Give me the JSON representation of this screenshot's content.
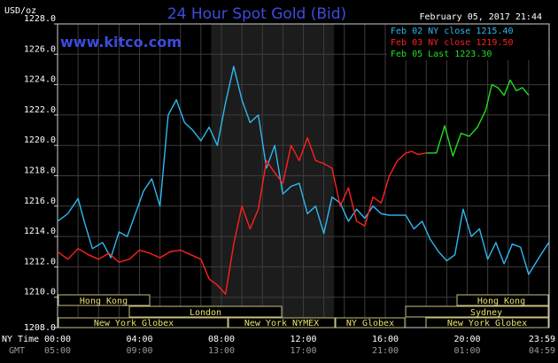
{
  "header": {
    "title": "24 Hour Spot Gold (Bid)",
    "units": "USD/oz",
    "site": "www.kitco.com",
    "timestamp": "February 05, 2017 21:44"
  },
  "legend": [
    {
      "label": "Feb 02 NY close 1215.40",
      "color": "#2fb8f0"
    },
    {
      "label": "Feb 03 NY close 1219.50",
      "color": "#ff2020"
    },
    {
      "label": "Feb 05 Last 1223.30",
      "color": "#20e020"
    }
  ],
  "axis": {
    "row1_label": "NY Time",
    "row2_label": "GMT",
    "ny_ticks": [
      "00:00",
      "04:00",
      "08:00",
      "12:00",
      "16:00",
      "20:00",
      "23:59"
    ],
    "gmt_ticks": [
      "05:00",
      "09:00",
      "13:00",
      "17:00",
      "21:00",
      "01:00",
      "04:59"
    ]
  },
  "markets": {
    "hong_kong_1": "Hong Kong",
    "london": "London",
    "ny_globex_1": "New York Globex",
    "ny_nymex": "New York NYMEX",
    "ny_globex_2": "NY Globex",
    "hong_kong_2": "Hong Kong",
    "sydney": "Sydney",
    "ny_globex_3": "New York Globex"
  },
  "chart_data": {
    "type": "line",
    "title": "24 Hour Spot Gold (Bid)",
    "ylabel": "USD/oz",
    "xlabel": "",
    "xlim": [
      0,
      24
    ],
    "ylim": [
      1208,
      1228
    ],
    "yticks": [
      1208,
      1210,
      1212,
      1214,
      1216,
      1218,
      1220,
      1222,
      1224,
      1226,
      1228
    ],
    "highlight_band_hours": [
      7.5,
      13.5
    ],
    "grid": true,
    "series": [
      {
        "name": "Feb 02 NY close 1215.40",
        "color": "#2fb8f0",
        "x": [
          0,
          0.5,
          1,
          1.3,
          1.7,
          2.2,
          2.6,
          3,
          3.4,
          3.8,
          4.2,
          4.6,
          5,
          5.4,
          5.8,
          6.2,
          6.6,
          7,
          7.4,
          7.8,
          8.2,
          8.6,
          9,
          9.4,
          9.8,
          10.2,
          10.6,
          11,
          11.4,
          11.8,
          12.2,
          12.6,
          13,
          13.4,
          13.8,
          14.2,
          14.6,
          15,
          15.4,
          15.8,
          16.2,
          16.6,
          17,
          17.4,
          17.8,
          18.2,
          18.6,
          19,
          19.4,
          19.8,
          20.2,
          20.6,
          21,
          21.4,
          21.8,
          22.2,
          22.6,
          23,
          23.5,
          23.98
        ],
        "y": [
          1215.0,
          1215.5,
          1216.5,
          1215.0,
          1213.2,
          1213.6,
          1212.6,
          1214.3,
          1214.0,
          1215.5,
          1217.0,
          1217.8,
          1216.0,
          1222.0,
          1223.0,
          1221.5,
          1221.0,
          1220.3,
          1221.2,
          1220.0,
          1222.8,
          1225.2,
          1223.0,
          1221.5,
          1222.0,
          1218.5,
          1220.0,
          1216.8,
          1217.3,
          1217.5,
          1215.5,
          1216.0,
          1214.2,
          1216.6,
          1216.2,
          1215.0,
          1215.8,
          1215.2,
          1216.0,
          1215.5,
          1215.4,
          1215.4,
          1215.4,
          1214.5,
          1215.0,
          1213.8,
          1213.0,
          1212.4,
          1212.8,
          1215.8,
          1214.0,
          1214.5,
          1212.5,
          1213.6,
          1212.2,
          1213.5,
          1213.3,
          1211.5,
          1212.6,
          1213.6
        ]
      },
      {
        "name": "Feb 03 NY close 1219.50",
        "color": "#ff2020",
        "x": [
          0,
          0.5,
          1,
          1.5,
          2,
          2.5,
          3,
          3.5,
          4,
          4.5,
          5,
          5.5,
          6,
          6.5,
          7,
          7.4,
          7.8,
          8.2,
          8.6,
          9,
          9.4,
          9.8,
          10.2,
          10.6,
          11,
          11.4,
          11.8,
          12.2,
          12.6,
          13,
          13.4,
          13.8,
          14.2,
          14.6,
          15,
          15.4,
          15.8,
          16.2,
          16.6,
          17,
          17.3,
          17.6,
          18
        ],
        "y": [
          1213.0,
          1212.5,
          1213.2,
          1212.8,
          1212.5,
          1212.9,
          1212.3,
          1212.5,
          1213.1,
          1212.9,
          1212.6,
          1213.0,
          1213.1,
          1212.8,
          1212.5,
          1211.2,
          1210.8,
          1210.2,
          1213.5,
          1216.0,
          1214.5,
          1215.8,
          1219.0,
          1218.2,
          1217.5,
          1220.0,
          1219.0,
          1220.5,
          1219.0,
          1218.8,
          1218.5,
          1216.0,
          1217.2,
          1215.0,
          1214.7,
          1216.6,
          1216.2,
          1218.0,
          1219.0,
          1219.5,
          1219.6,
          1219.4,
          1219.5
        ]
      },
      {
        "name": "Feb 05 Last 1223.30",
        "color": "#20e020",
        "x": [
          18,
          18.5,
          18.9,
          19.3,
          19.7,
          20.1,
          20.5,
          20.9,
          21.2,
          21.5,
          21.8,
          22.1,
          22.4,
          22.7,
          23
        ],
        "y": [
          1219.5,
          1219.5,
          1221.3,
          1219.3,
          1220.8,
          1220.6,
          1221.2,
          1222.3,
          1224.0,
          1223.8,
          1223.3,
          1224.3,
          1223.6,
          1223.8,
          1223.3
        ]
      }
    ]
  }
}
